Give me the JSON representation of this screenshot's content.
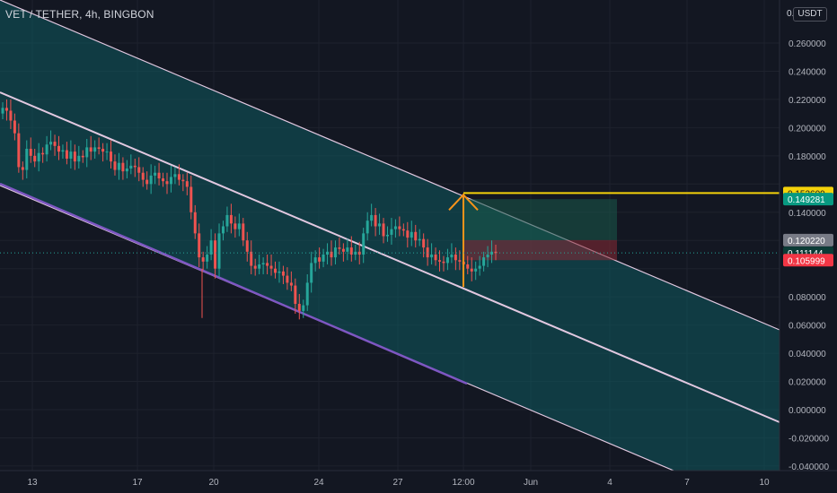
{
  "header": {
    "symbol": "VET / TETHER",
    "interval": "4h",
    "exchange": "BINGBON",
    "separator": ", ",
    "currency_prefix": "0.",
    "currency_button": "USDT"
  },
  "price_axis": {
    "ticks": [
      "0.260000",
      "0.240000",
      "0.220000",
      "0.200000",
      "0.180000",
      "0.140000",
      "0.080000",
      "0.060000",
      "0.040000",
      "0.020000",
      "0.000000",
      "-0.020000",
      "-0.040000"
    ],
    "tick_values": [
      0.26,
      0.24,
      0.22,
      0.2,
      0.18,
      0.14,
      0.08,
      0.06,
      0.04,
      0.02,
      0.0,
      -0.02,
      -0.04
    ]
  },
  "price_labels": [
    {
      "text": "0.153609",
      "value": 0.153609,
      "bg": "#f5d20a",
      "fg": "#131722"
    },
    {
      "text": "0.149281",
      "value": 0.149281,
      "bg": "#089981",
      "fg": "#ffffff"
    },
    {
      "text": "0.120220",
      "value": 0.12022,
      "bg": "#787b86",
      "fg": "#ffffff"
    },
    {
      "text": "0.111144",
      "value": 0.111144,
      "bg": "#0b3b36",
      "fg": "#ffffff"
    },
    {
      "text": "0.105999",
      "value": 0.105999,
      "bg": "#f23645",
      "fg": "#ffffff"
    }
  ],
  "time_axis": {
    "labels": [
      "13",
      "17",
      "20",
      "24",
      "27",
      "12:00",
      "Jun",
      "4",
      "7",
      "10"
    ]
  },
  "colors": {
    "background": "#131722",
    "up": "#26a69a",
    "down": "#ef5350",
    "channel_fill": "#0e5a5f",
    "channel_line": "#e1c8e0",
    "purple_line": "#7e57c2",
    "target_line": "#f5d20a",
    "arrow": "#f7931a",
    "profit_zone": "#1a5a4a",
    "loss_zone": "#8a2a35"
  },
  "icons": {
    "target_arrow": "arrow-up-icon"
  },
  "chart_data": {
    "type": "candlestick",
    "symbol": "VET / TETHER",
    "interval": "4h",
    "price_range": [
      -0.045,
      0.28
    ],
    "current_price": 0.111144,
    "target_price": 0.153609,
    "take_profit": 0.149281,
    "stop_top": 0.12022,
    "stop_loss": 0.105999,
    "candles_close": [
      0.214,
      0.212,
      0.205,
      0.196,
      0.172,
      0.17,
      0.185,
      0.18,
      0.176,
      0.182,
      0.181,
      0.188,
      0.19,
      0.187,
      0.183,
      0.184,
      0.178,
      0.183,
      0.176,
      0.18,
      0.179,
      0.186,
      0.183,
      0.186,
      0.185,
      0.183,
      0.183,
      0.176,
      0.17,
      0.175,
      0.169,
      0.171,
      0.173,
      0.172,
      0.168,
      0.163,
      0.16,
      0.166,
      0.168,
      0.164,
      0.162,
      0.16,
      0.165,
      0.167,
      0.163,
      0.162,
      0.158,
      0.14,
      0.125,
      0.108,
      0.105,
      0.11,
      0.12,
      0.1,
      0.125,
      0.13,
      0.138,
      0.132,
      0.128,
      0.132,
      0.12,
      0.112,
      0.102,
      0.1,
      0.103,
      0.104,
      0.102,
      0.1,
      0.097,
      0.098,
      0.095,
      0.09,
      0.088,
      0.075,
      0.07,
      0.074,
      0.09,
      0.104,
      0.108,
      0.105,
      0.11,
      0.112,
      0.108,
      0.115,
      0.114,
      0.112,
      0.115,
      0.11,
      0.112,
      0.11,
      0.125,
      0.134,
      0.138,
      0.13,
      0.132,
      0.123,
      0.124,
      0.128,
      0.13,
      0.128,
      0.127,
      0.122,
      0.126,
      0.12,
      0.121,
      0.115,
      0.108,
      0.11,
      0.106,
      0.105,
      0.104,
      0.108,
      0.11,
      0.106,
      0.105,
      0.103,
      0.1,
      0.098,
      0.1,
      0.102,
      0.108,
      0.11,
      0.112,
      0.111
    ]
  }
}
